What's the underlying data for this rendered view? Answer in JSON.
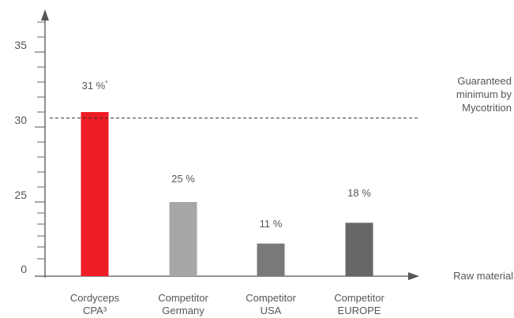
{
  "chart_data": {
    "type": "bar",
    "title": "",
    "xlabel": "Raw material",
    "ylabel": "",
    "y_ticks": [
      "0",
      "25",
      "30",
      "35"
    ],
    "categories": [
      [
        "Cordyceps",
        "CPA³"
      ],
      [
        "Competitor",
        "Germany"
      ],
      [
        "Competitor",
        "USA"
      ],
      [
        "Competitor",
        "EUROPE"
      ]
    ],
    "values": [
      31,
      25,
      11,
      18
    ],
    "data_labels": [
      "31 %*",
      "25 %",
      "11 %",
      "18 %"
    ],
    "colors": [
      "#ee1c25",
      "#a9a6a6",
      "#7b7878",
      "#686666"
    ],
    "reference_line": {
      "value": 30.6,
      "label": [
        "Guaranteed",
        "minimum by",
        "Mycotrition"
      ],
      "style": "dashed"
    },
    "axis_color": "#555555",
    "text_color": "#555555",
    "grid": false,
    "legend": "none"
  }
}
